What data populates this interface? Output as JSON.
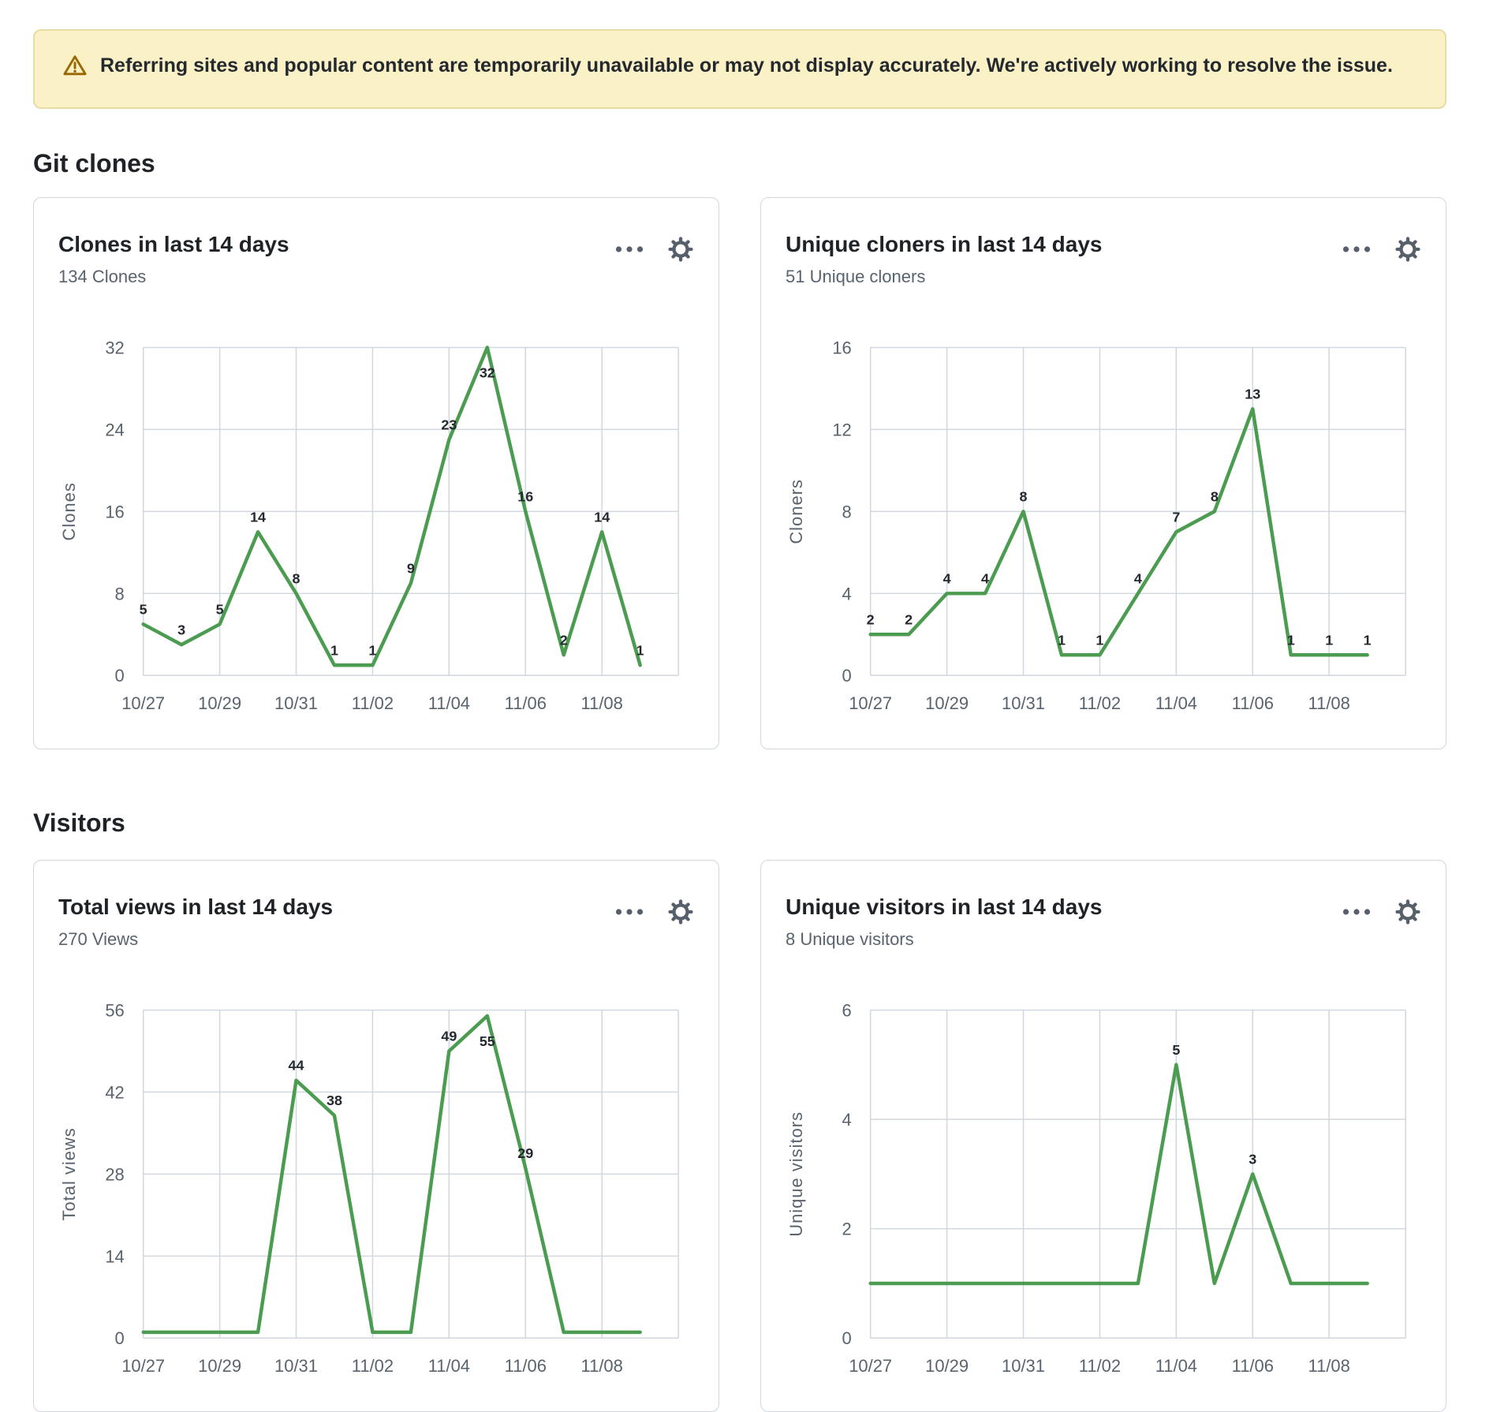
{
  "banner": {
    "icon": "alert-icon",
    "text": "Referring sites and popular content are temporarily unavailable or may not display accurately. We're actively working to resolve the issue."
  },
  "sections": [
    {
      "heading": "Git clones"
    },
    {
      "heading": "Visitors"
    }
  ],
  "colors": {
    "line": "#4b9c51",
    "grid": "#d0d7de",
    "tick_text": "#59636e",
    "label_text": "#24292f",
    "icon": "#57606a",
    "banner_bg": "#fbf1c6",
    "banner_border": "#e9dba4",
    "banner_icon": "#9a6700"
  },
  "chart_data": [
    {
      "type": "line",
      "title": "Clones in last 14 days",
      "subtitle": "134 Clones",
      "ylabel": "Clones",
      "x": [
        "10/27",
        "10/28",
        "10/29",
        "10/30",
        "10/31",
        "11/01",
        "11/02",
        "11/03",
        "11/04",
        "11/05",
        "11/06",
        "11/07",
        "11/08",
        "11/09"
      ],
      "values": [
        5,
        3,
        5,
        14,
        8,
        1,
        1,
        9,
        23,
        32,
        16,
        2,
        14,
        1
      ],
      "ylim": [
        0,
        32
      ],
      "yticks": [
        0,
        8,
        16,
        24,
        32
      ],
      "xtick_labels": [
        "10/27",
        "10/29",
        "10/31",
        "11/02",
        "11/04",
        "11/06",
        "11/08"
      ],
      "grid": true,
      "legend": null
    },
    {
      "type": "line",
      "title": "Unique cloners in last 14 days",
      "subtitle": "51 Unique cloners",
      "ylabel": "Cloners",
      "x": [
        "10/27",
        "10/28",
        "10/29",
        "10/30",
        "10/31",
        "11/01",
        "11/02",
        "11/03",
        "11/04",
        "11/05",
        "11/06",
        "11/07",
        "11/08",
        "11/09"
      ],
      "values": [
        2,
        2,
        4,
        4,
        8,
        1,
        1,
        4,
        7,
        8,
        13,
        1,
        1,
        1
      ],
      "ylim": [
        0,
        16
      ],
      "yticks": [
        0,
        4,
        8,
        12,
        16
      ],
      "xtick_labels": [
        "10/27",
        "10/29",
        "10/31",
        "11/02",
        "11/04",
        "11/06",
        "11/08"
      ],
      "grid": true,
      "legend": null
    },
    {
      "type": "line",
      "title": "Total views in last 14 days",
      "subtitle": "270 Views",
      "ylabel": "Total views",
      "x": [
        "10/27",
        "10/28",
        "10/29",
        "10/30",
        "10/31",
        "11/01",
        "11/02",
        "11/03",
        "11/04",
        "11/05",
        "11/06",
        "11/07",
        "11/08",
        "11/09"
      ],
      "values": [
        null,
        null,
        null,
        null,
        44,
        38,
        null,
        null,
        49,
        55,
        29,
        null,
        null,
        null
      ],
      "values_note": "null = point below the visible cut-off of the screenshot",
      "ylim": [
        0,
        56
      ],
      "yticks": [
        0,
        14,
        28,
        42,
        56
      ],
      "xtick_labels": [
        "10/27",
        "10/29",
        "10/31",
        "11/02",
        "11/04",
        "11/06",
        "11/08"
      ],
      "grid": true,
      "legend": null,
      "partially_clipped": true
    },
    {
      "type": "line",
      "title": "Unique visitors in last 14 days",
      "subtitle": "8 Unique visitors",
      "ylabel": "Unique visitors",
      "x": [
        "10/27",
        "10/28",
        "10/29",
        "10/30",
        "10/31",
        "11/01",
        "11/02",
        "11/03",
        "11/04",
        "11/05",
        "11/06",
        "11/07",
        "11/08",
        "11/09"
      ],
      "values": [
        null,
        null,
        null,
        null,
        null,
        null,
        null,
        null,
        5,
        null,
        3,
        null,
        null,
        null
      ],
      "values_note": "null = point below the visible cut-off of the screenshot",
      "ylim": [
        0,
        6
      ],
      "yticks": [
        0,
        2,
        4,
        6
      ],
      "xtick_labels": [
        "10/27",
        "10/29",
        "10/31",
        "11/02",
        "11/04",
        "11/06",
        "11/08"
      ],
      "grid": true,
      "legend": null,
      "partially_clipped": true
    }
  ]
}
